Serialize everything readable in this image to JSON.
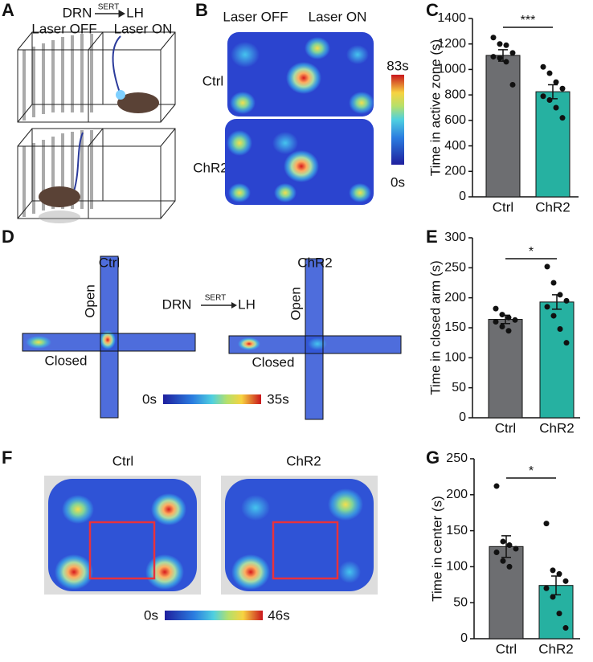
{
  "figure": {
    "panel_labels": [
      "A",
      "B",
      "C",
      "D",
      "E",
      "F",
      "G"
    ],
    "panel_a": {
      "source": "DRN",
      "marker": "SERT",
      "target": "LH",
      "laser_off": "Laser OFF",
      "laser_on": "Laser ON"
    },
    "panel_b": {
      "laser_off": "Laser OFF",
      "laser_on": "Laser ON",
      "rows": [
        "Ctrl",
        "ChR2"
      ],
      "colorbar_max": "83s",
      "colorbar_min": "0s"
    },
    "panel_d": {
      "groups": [
        "Ctrl",
        "ChR2"
      ],
      "source": "DRN",
      "marker": "SERT",
      "target": "LH",
      "open": "Open",
      "closed": "Closed",
      "colorbar_min": "0s",
      "colorbar_max": "35s"
    },
    "panel_f": {
      "groups": [
        "Ctrl",
        "ChR2"
      ],
      "colorbar_min": "0s",
      "colorbar_max": "46s"
    }
  },
  "chart_data": [
    {
      "type": "bar",
      "y_label": "Time in active zone (s)",
      "categories": [
        "Ctrl",
        "ChR2"
      ],
      "values": [
        1110,
        825
      ],
      "errors": [
        45,
        55
      ],
      "colors": [
        "#6d6e71",
        "#26b1a1"
      ],
      "points": [
        [
          1250,
          1200,
          1190,
          1130,
          1100,
          1090,
          1060,
          880
        ],
        [
          1020,
          970,
          900,
          850,
          790,
          760,
          700,
          620
        ]
      ],
      "significance": "***",
      "ylim": [
        0,
        1400
      ],
      "yticks": [
        0,
        200,
        400,
        600,
        800,
        1000,
        1200,
        1400
      ]
    },
    {
      "type": "bar",
      "y_label": "Time in closed arm (s)",
      "categories": [
        "Ctrl",
        "ChR2"
      ],
      "values": [
        164,
        193
      ],
      "errors": [
        7,
        12
      ],
      "colors": [
        "#6d6e71",
        "#26b1a1"
      ],
      "points": [
        [
          182,
          172,
          167,
          163,
          160,
          152,
          145
        ],
        [
          252,
          225,
          205,
          195,
          185,
          170,
          148,
          125
        ]
      ],
      "significance": "*",
      "ylim": [
        0,
        300
      ],
      "yticks": [
        0,
        50,
        100,
        150,
        200,
        250,
        300
      ]
    },
    {
      "type": "bar",
      "y_label": "Time in center (s)",
      "categories": [
        "Ctrl",
        "ChR2"
      ],
      "values": [
        128,
        74
      ],
      "errors": [
        15,
        13
      ],
      "colors": [
        "#6d6e71",
        "#26b1a1"
      ],
      "points": [
        [
          212,
          135,
          130,
          125,
          120,
          108,
          100
        ],
        [
          160,
          95,
          90,
          80,
          70,
          58,
          35,
          15
        ]
      ],
      "significance": "*",
      "ylim": [
        0,
        250
      ],
      "yticks": [
        0,
        50,
        100,
        150,
        200,
        250
      ]
    }
  ]
}
